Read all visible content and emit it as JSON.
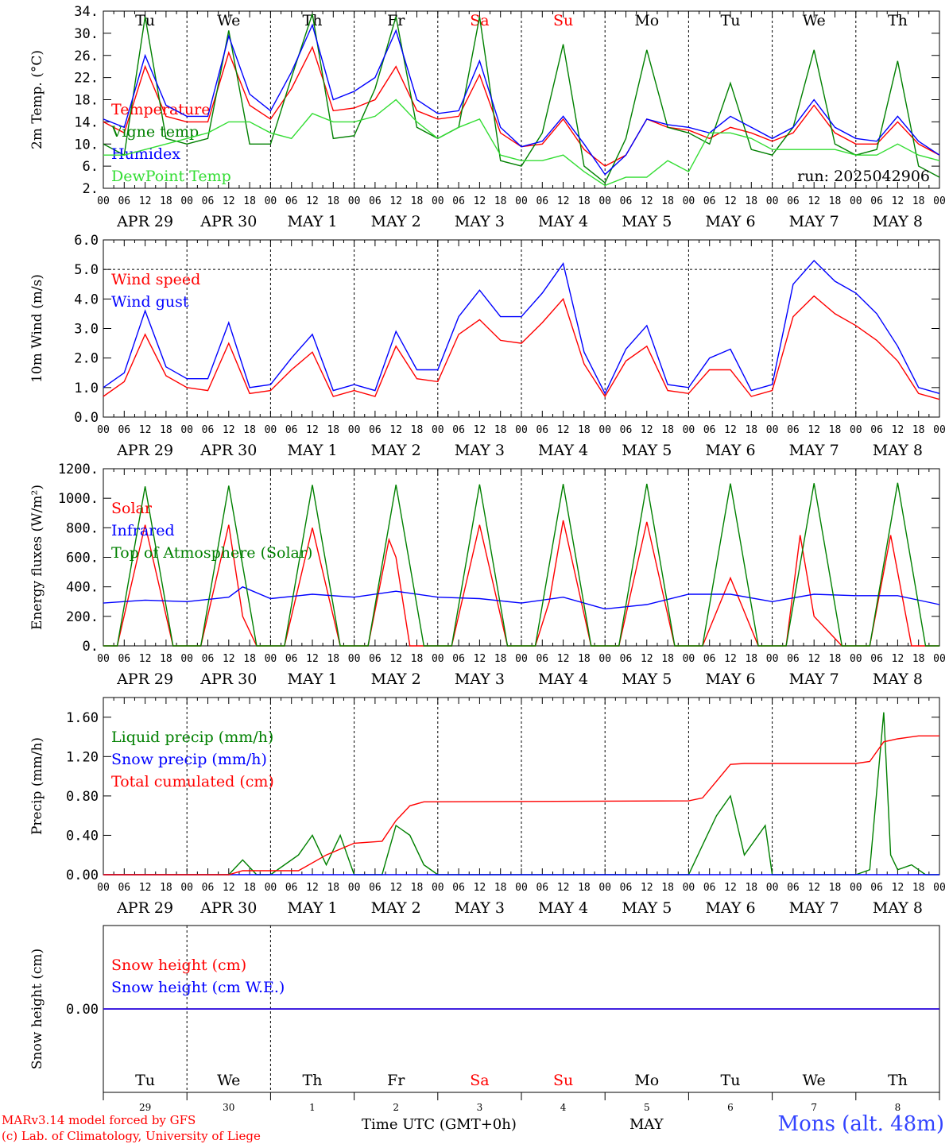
{
  "colors": {
    "red": "#ff0000",
    "green": "#008000",
    "blue": "#0000ff",
    "lime": "#33dd33",
    "grid": "#000000"
  },
  "days": [
    "Tu",
    "We",
    "Th",
    "Fr",
    "Sa",
    "Su",
    "Mo",
    "Tu",
    "We",
    "Th"
  ],
  "day_colors": [
    "#000",
    "#000",
    "#000",
    "#000",
    "#ff0000",
    "#ff0000",
    "#000",
    "#000",
    "#000",
    "#000"
  ],
  "hour_ticks": [
    "00",
    "06",
    "12",
    "18"
  ],
  "date_labels": [
    "APR 29",
    "APR 30",
    "MAY  1",
    "MAY  2",
    "MAY  3",
    "MAY  4",
    "MAY  5",
    "MAY  6",
    "MAY  7",
    "MAY  8"
  ],
  "bottom_day_numbers": [
    "29",
    "30",
    "1",
    "2",
    "3",
    "4",
    "5",
    "6",
    "7",
    "8"
  ],
  "footer": {
    "model": "MARv3.14 model forced by GFS",
    "lab": "(c) Lab. of Climatology, University of Liege",
    "time_label": "Time UTC (GMT+0h)",
    "month_label": "MAY",
    "station": "Mons (alt. 48m)"
  },
  "chart_data": [
    {
      "type": "line",
      "title": "",
      "ylabel": "2m Temp. (°C)",
      "ylim": [
        2,
        34
      ],
      "yticks": [
        "2.",
        "6.",
        "10.",
        "14.",
        "18.",
        "22.",
        "26.",
        "30.",
        "34."
      ],
      "annotation": "run: 2025042906",
      "series": [
        {
          "name": "Temperature",
          "color": "#ff0000",
          "x": [
            0,
            6,
            12,
            18,
            24,
            30,
            36,
            42,
            48,
            54,
            60,
            66,
            72,
            78,
            84,
            90,
            96,
            102,
            108,
            114,
            120,
            126,
            132,
            138,
            144,
            150,
            156,
            162,
            168,
            174,
            180,
            186,
            192,
            198,
            204,
            210,
            216,
            222,
            228,
            234,
            240
          ],
          "y": [
            14,
            12,
            24,
            15,
            14,
            14,
            26.5,
            17,
            14.5,
            20,
            27.5,
            16,
            16.5,
            18,
            24,
            16,
            14.5,
            15,
            22.5,
            12,
            9.5,
            10,
            14.5,
            9,
            6,
            8,
            14.5,
            13,
            12.5,
            11,
            13,
            12,
            10.5,
            12,
            17,
            12,
            10,
            10,
            14,
            10,
            8
          ]
        },
        {
          "name": "Vigne temp",
          "color": "#008000",
          "x": [
            0,
            6,
            12,
            18,
            24,
            30,
            36,
            42,
            48,
            54,
            60,
            66,
            72,
            78,
            84,
            90,
            96,
            102,
            108,
            114,
            120,
            126,
            132,
            138,
            144,
            150,
            156,
            162,
            168,
            174,
            180,
            186,
            192,
            198,
            204,
            210,
            216,
            222,
            228,
            234,
            240
          ],
          "y": [
            10,
            8,
            33,
            11,
            10,
            11,
            30.5,
            10,
            10,
            22,
            33.5,
            11,
            11.5,
            20,
            33,
            13,
            11,
            13,
            33,
            7,
            6,
            12,
            28,
            6,
            3,
            11,
            27,
            13,
            12,
            10,
            21,
            9,
            8,
            13,
            27,
            10,
            8,
            9,
            25,
            6,
            4
          ]
        },
        {
          "name": "Humidex",
          "color": "#0000ff",
          "x": [
            0,
            6,
            12,
            18,
            24,
            30,
            36,
            42,
            48,
            54,
            60,
            66,
            72,
            78,
            84,
            90,
            96,
            102,
            108,
            114,
            120,
            126,
            132,
            138,
            144,
            150,
            156,
            162,
            168,
            174,
            180,
            186,
            192,
            198,
            204,
            210,
            216,
            222,
            228,
            234,
            240
          ],
          "y": [
            14.5,
            13,
            26,
            17,
            15,
            15,
            29.5,
            19,
            16,
            23,
            31.5,
            18,
            19.5,
            22,
            30.5,
            18,
            15.5,
            16,
            25,
            13,
            9.5,
            10.5,
            15,
            10,
            4.5,
            8,
            14.5,
            13.5,
            13,
            12,
            15,
            13,
            11,
            13,
            18,
            13,
            11,
            10.5,
            15,
            10.5,
            8
          ]
        },
        {
          "name": "DewPoint Temp",
          "color": "#33dd33",
          "x": [
            0,
            6,
            12,
            18,
            24,
            30,
            36,
            42,
            48,
            54,
            60,
            66,
            72,
            78,
            84,
            90,
            96,
            102,
            108,
            114,
            120,
            126,
            132,
            138,
            144,
            150,
            156,
            162,
            168,
            174,
            180,
            186,
            192,
            198,
            204,
            210,
            216,
            222,
            228,
            234,
            240
          ],
          "y": [
            8,
            8,
            9,
            10,
            11,
            12,
            14,
            14,
            12,
            11,
            15.5,
            14,
            14,
            15,
            18,
            14,
            11,
            13,
            14.5,
            8,
            7,
            7,
            8,
            5,
            2.5,
            4,
            4,
            7,
            5,
            12,
            12,
            11,
            9,
            9,
            9,
            9,
            8,
            8,
            10,
            8,
            7
          ]
        }
      ]
    },
    {
      "type": "line",
      "title": "",
      "ylabel": "10m Wind (m/s)",
      "ylim": [
        0,
        6
      ],
      "yticks": [
        "0.0",
        "1.0",
        "2.0",
        "3.0",
        "4.0",
        "5.0",
        "6.0"
      ],
      "reference_line": 5.0,
      "series": [
        {
          "name": "Wind speed",
          "color": "#ff0000",
          "x": [
            0,
            6,
            12,
            18,
            24,
            30,
            36,
            42,
            48,
            54,
            60,
            66,
            72,
            78,
            84,
            90,
            96,
            102,
            108,
            114,
            120,
            126,
            132,
            138,
            144,
            150,
            156,
            162,
            168,
            174,
            180,
            186,
            192,
            198,
            204,
            210,
            216,
            222,
            228,
            234,
            240
          ],
          "y": [
            0.7,
            1.2,
            2.8,
            1.4,
            1.0,
            0.9,
            2.5,
            0.8,
            0.9,
            1.6,
            2.2,
            0.7,
            0.9,
            0.7,
            2.4,
            1.3,
            1.2,
            2.8,
            3.3,
            2.6,
            2.5,
            3.2,
            4.0,
            1.8,
            0.7,
            1.9,
            2.4,
            0.9,
            0.8,
            1.6,
            1.6,
            0.7,
            0.9,
            3.4,
            4.1,
            3.5,
            3.1,
            2.6,
            1.9,
            0.8,
            0.6
          ]
        },
        {
          "name": "Wind gust",
          "color": "#0000ff",
          "x": [
            0,
            6,
            12,
            18,
            24,
            30,
            36,
            42,
            48,
            54,
            60,
            66,
            72,
            78,
            84,
            90,
            96,
            102,
            108,
            114,
            120,
            126,
            132,
            138,
            144,
            150,
            156,
            162,
            168,
            174,
            180,
            186,
            192,
            198,
            204,
            210,
            216,
            222,
            228,
            234,
            240
          ],
          "y": [
            1.0,
            1.5,
            3.6,
            1.7,
            1.3,
            1.3,
            3.2,
            1.0,
            1.1,
            2.0,
            2.8,
            0.9,
            1.1,
            0.9,
            2.9,
            1.6,
            1.6,
            3.4,
            4.3,
            3.4,
            3.4,
            4.2,
            5.2,
            2.2,
            0.8,
            2.3,
            3.1,
            1.1,
            1.0,
            2.0,
            2.3,
            0.9,
            1.1,
            4.5,
            5.3,
            4.6,
            4.2,
            3.5,
            2.4,
            1.0,
            0.8
          ]
        }
      ]
    },
    {
      "type": "line",
      "title": "",
      "ylabel": "Energy fluxes (W/m²)",
      "ylim": [
        0,
        1200
      ],
      "yticks": [
        "0.",
        "200.",
        "400.",
        "600.",
        "800.",
        "1000.",
        "1200."
      ],
      "series": [
        {
          "name": "Solar",
          "color": "#ff0000",
          "x": [
            0,
            4,
            12,
            20,
            24,
            28,
            36,
            40,
            44,
            48,
            52,
            60,
            68,
            72,
            76,
            82,
            84,
            88,
            92,
            96,
            100,
            108,
            116,
            120,
            124,
            128,
            132,
            140,
            144,
            148,
            156,
            164,
            168,
            172,
            180,
            188,
            192,
            196,
            200,
            204,
            212,
            216,
            220,
            226,
            232,
            236,
            240
          ],
          "y": [
            0,
            0,
            820,
            0,
            0,
            0,
            820,
            200,
            0,
            0,
            0,
            800,
            0,
            0,
            0,
            720,
            600,
            0,
            0,
            0,
            0,
            820,
            0,
            0,
            0,
            300,
            850,
            0,
            0,
            0,
            840,
            0,
            0,
            0,
            460,
            0,
            0,
            0,
            750,
            200,
            0,
            0,
            0,
            750,
            0,
            0,
            0
          ]
        },
        {
          "name": "Infrared",
          "color": "#0000ff",
          "x": [
            0,
            12,
            24,
            36,
            40,
            48,
            60,
            72,
            84,
            96,
            108,
            120,
            132,
            144,
            156,
            168,
            180,
            192,
            204,
            216,
            228,
            240
          ],
          "y": [
            290,
            310,
            300,
            330,
            400,
            320,
            350,
            330,
            370,
            330,
            320,
            290,
            330,
            250,
            280,
            350,
            350,
            300,
            350,
            340,
            340,
            280
          ]
        },
        {
          "name": "Top of Atmosphere (Solar)",
          "color": "#008000",
          "x": [
            0,
            4,
            12,
            20,
            24,
            28,
            36,
            44,
            48,
            52,
            60,
            68,
            72,
            76,
            84,
            92,
            96,
            100,
            108,
            116,
            120,
            124,
            132,
            140,
            144,
            148,
            156,
            164,
            168,
            172,
            180,
            188,
            192,
            196,
            204,
            212,
            216,
            220,
            228,
            236,
            240
          ],
          "y": [
            0,
            0,
            1080,
            0,
            0,
            0,
            1085,
            0,
            0,
            0,
            1090,
            0,
            0,
            0,
            1092,
            0,
            0,
            0,
            1094,
            0,
            0,
            0,
            1096,
            0,
            0,
            0,
            1098,
            0,
            0,
            0,
            1100,
            0,
            0,
            0,
            1102,
            0,
            0,
            0,
            1104,
            0,
            0
          ]
        }
      ]
    },
    {
      "type": "line",
      "title": "",
      "ylabel": "Precip (mm/h)",
      "ylim": [
        0,
        1.8
      ],
      "yticks": [
        "0.00",
        "0.40",
        "0.80",
        "1.20",
        "1.60"
      ],
      "series": [
        {
          "name": "Liquid precip (mm/h)",
          "color": "#008000",
          "x": [
            0,
            36,
            40,
            44,
            48,
            56,
            60,
            64,
            68,
            72,
            76,
            80,
            84,
            88,
            92,
            96,
            100,
            168,
            172,
            176,
            180,
            184,
            190,
            192,
            216,
            220,
            224,
            226,
            228,
            232,
            236,
            240
          ],
          "y": [
            0,
            0,
            0.15,
            0,
            0,
            0.2,
            0.4,
            0.1,
            0.4,
            0,
            0,
            0,
            0.5,
            0.4,
            0.1,
            0,
            0,
            0,
            0.3,
            0.6,
            0.8,
            0.2,
            0.5,
            0,
            0,
            0.05,
            1.65,
            0.2,
            0.05,
            0.1,
            0,
            0
          ]
        },
        {
          "name": "Snow precip (mm/h)",
          "color": "#0000ff",
          "x": [
            0,
            240
          ],
          "y": [
            0,
            0
          ]
        },
        {
          "name": "Total cumulated (cm)",
          "color": "#ff0000",
          "x": [
            0,
            36,
            40,
            56,
            64,
            72,
            80,
            84,
            88,
            92,
            168,
            172,
            176,
            180,
            184,
            216,
            220,
            224,
            228,
            234,
            240
          ],
          "y": [
            0,
            0,
            0.04,
            0.04,
            0.2,
            0.32,
            0.34,
            0.55,
            0.7,
            0.74,
            0.75,
            0.78,
            0.95,
            1.12,
            1.13,
            1.13,
            1.15,
            1.35,
            1.38,
            1.41,
            1.41
          ]
        }
      ]
    },
    {
      "type": "line",
      "title": "",
      "ylabel": "Snow height (cm)",
      "ylim": [
        -1,
        1
      ],
      "yticks": [
        "0.00"
      ],
      "series": [
        {
          "name": "Snow height (cm)",
          "color": "#ff0000",
          "x": [
            0,
            240
          ],
          "y": [
            0,
            0
          ]
        },
        {
          "name": "Snow height (cm W.E.)",
          "color": "#0000ff",
          "x": [
            0,
            240
          ],
          "y": [
            0,
            0
          ]
        }
      ]
    }
  ]
}
